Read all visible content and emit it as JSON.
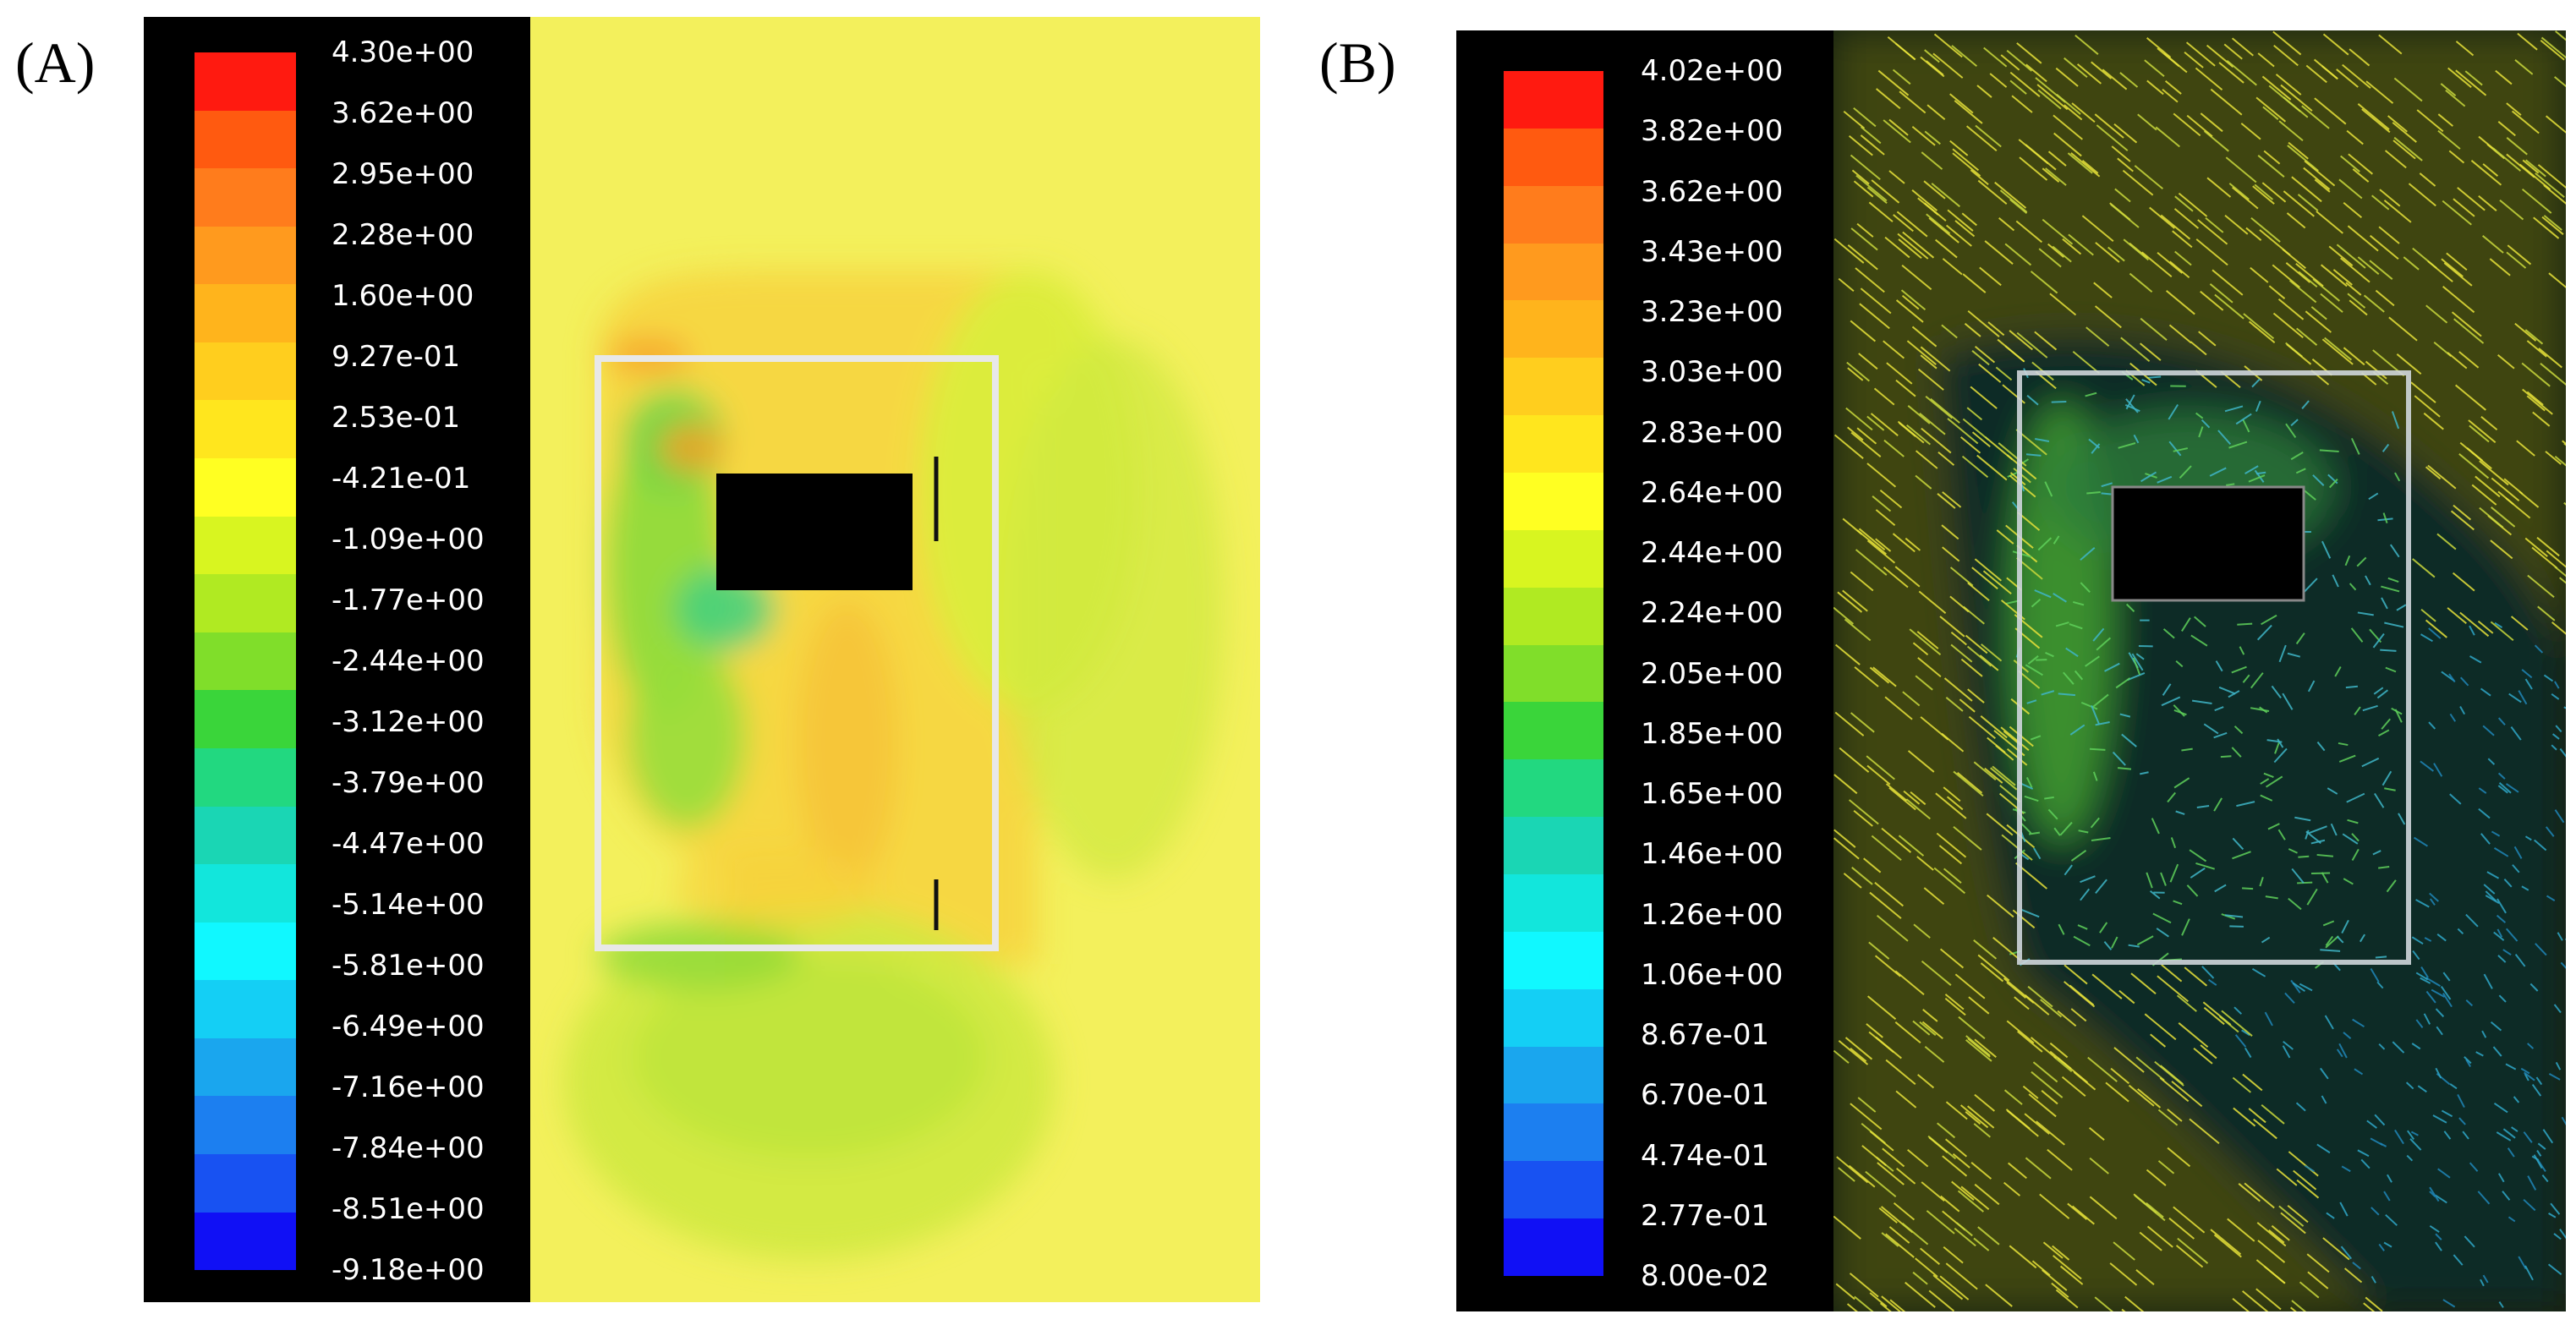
{
  "panels": [
    {
      "label": "(A)",
      "legend": [
        "4.30e+00",
        "3.62e+00",
        "2.95e+00",
        "2.28e+00",
        "1.60e+00",
        "9.27e-01",
        "2.53e-01",
        "-4.21e-01",
        "-1.09e+00",
        "-1.77e+00",
        "-2.44e+00",
        "-3.12e+00",
        "-3.79e+00",
        "-4.47e+00",
        "-5.14e+00",
        "-5.81e+00",
        "-6.49e+00",
        "-7.16e+00",
        "-7.84e+00",
        "-8.51e+00",
        "-9.18e+00"
      ],
      "colors": [
        "#ff1a10",
        "#ff5a10",
        "#ff7c1c",
        "#ff9a1e",
        "#ffb41c",
        "#ffce1e",
        "#ffe61e",
        "#ffff22",
        "#d8f520",
        "#b0ea22",
        "#80de2a",
        "#3ad53a",
        "#22d880",
        "#1ad6b4",
        "#12e6dc",
        "#10f8ff",
        "#14cff5",
        "#1aa6ee",
        "#1c7ff0",
        "#1852f2",
        "#1010f5"
      ]
    },
    {
      "label": "(B)",
      "legend": [
        "4.02e+00",
        "3.82e+00",
        "3.62e+00",
        "3.43e+00",
        "3.23e+00",
        "3.03e+00",
        "2.83e+00",
        "2.64e+00",
        "2.44e+00",
        "2.24e+00",
        "2.05e+00",
        "1.85e+00",
        "1.65e+00",
        "1.46e+00",
        "1.26e+00",
        "1.06e+00",
        "8.67e-01",
        "6.70e-01",
        "4.74e-01",
        "2.77e-01",
        "8.00e-02"
      ],
      "colors": [
        "#ff1a10",
        "#ff5a10",
        "#ff7c1c",
        "#ff9a1e",
        "#ffb41c",
        "#ffce1e",
        "#ffe61e",
        "#ffff22",
        "#d8f520",
        "#b0ea22",
        "#80de2a",
        "#3ad53a",
        "#22d880",
        "#1ad6b4",
        "#12e6dc",
        "#10f8ff",
        "#14cff5",
        "#1aa6ee",
        "#1c7ff0",
        "#1852f2",
        "#1010f5"
      ]
    }
  ]
}
